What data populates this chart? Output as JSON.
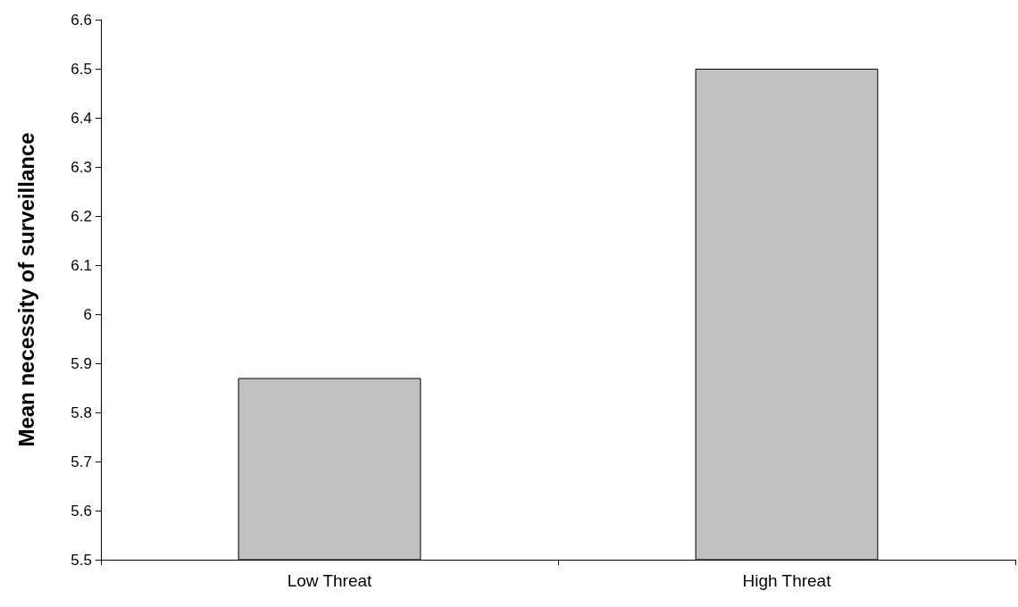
{
  "chart_data": {
    "type": "bar",
    "ylabel": "Mean necessity of surveillance",
    "categories": [
      "Low Threat",
      "High Threat"
    ],
    "values": [
      5.87,
      6.5
    ],
    "color": "#c0c0c0",
    "ylim": [
      5.5,
      6.6
    ],
    "yticks": [
      5.5,
      5.6,
      5.7,
      5.8,
      5.9,
      6,
      6.1,
      6.2,
      6.3,
      6.4,
      6.5,
      6.6
    ],
    "grid": false
  }
}
